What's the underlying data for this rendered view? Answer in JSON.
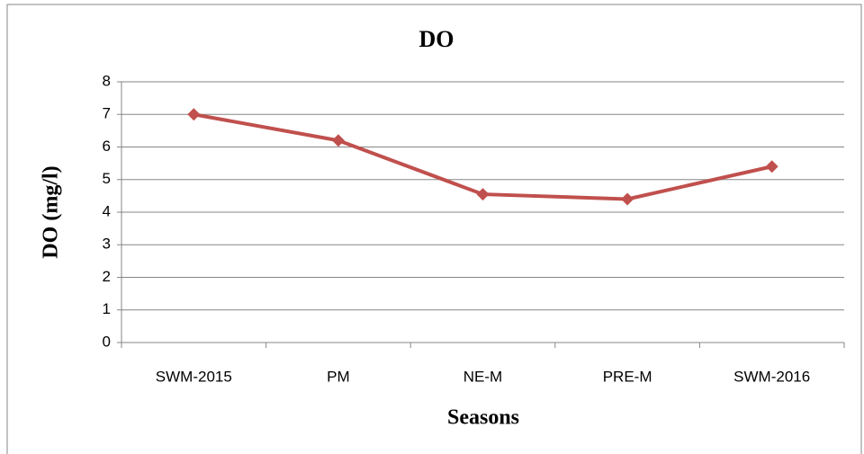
{
  "chart_data": {
    "type": "line",
    "title": "DO",
    "x_label": "Seasons",
    "y_label": "DO (mg/l)",
    "categories": [
      "SWM-2015",
      "PM",
      "NE-M",
      "PRE-M",
      "SWM-2016"
    ],
    "series": [
      {
        "name": "DO",
        "color": "#c0504d",
        "values": [
          7.0,
          6.2,
          4.55,
          4.4,
          5.4
        ]
      }
    ],
    "ylim": [
      0,
      8
    ],
    "yticks": [
      0,
      1,
      2,
      3,
      4,
      5,
      6,
      7,
      8
    ],
    "grid": true
  }
}
